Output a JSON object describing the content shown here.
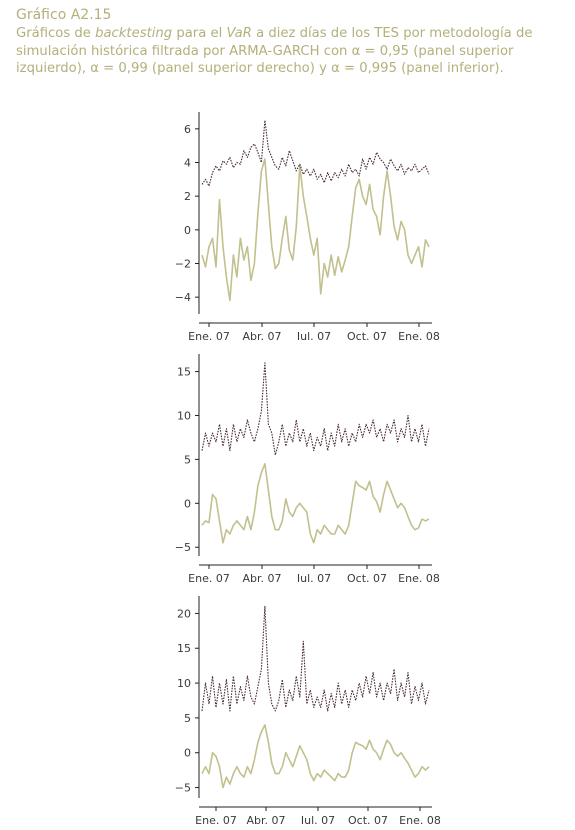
{
  "caption": {
    "label": "Gráfico A2.15",
    "parts": [
      {
        "text": "Gráficos de ",
        "italic": false
      },
      {
        "text": "backtesting",
        "italic": true
      },
      {
        "text": " para el ",
        "italic": false
      },
      {
        "text": "VaR",
        "italic": true
      },
      {
        "text": " a diez días de los TES por metodología de simulación histórica filtrada por ARMA-GARCH con α = 0,95 (panel superior izquierdo), α = 0,99 (panel superior derecho) y α = 0,995 (panel inferior).",
        "italic": false
      }
    ]
  },
  "colors": {
    "returns": "#c2c08e",
    "var": "#4a2c34",
    "axis": "#222222"
  },
  "chart_data": [
    {
      "type": "line",
      "title": "",
      "xlabel": "",
      "ylabel": "",
      "xticks": [
        "Ene. 07",
        "Abr. 07",
        "Jul. 07",
        "Oct. 07",
        "Ene. 08"
      ],
      "ylim": [
        -5,
        7
      ],
      "yticks": [
        -4,
        -2,
        0,
        2,
        4,
        6
      ],
      "series": [
        {
          "style": "dotted",
          "color": "#4a2c34",
          "x": [
            0,
            4,
            8,
            12,
            16,
            20,
            24,
            28,
            32,
            36,
            40,
            44,
            48,
            52,
            56,
            60,
            64,
            68,
            72,
            76,
            80,
            84,
            88,
            92,
            96,
            100,
            104,
            108,
            112,
            116,
            120,
            124,
            128,
            132,
            136,
            140,
            144,
            148,
            152,
            156,
            160,
            164,
            168,
            172,
            176,
            180,
            184,
            188,
            192,
            196,
            200,
            204,
            208,
            212,
            216,
            220,
            224,
            228,
            232,
            236,
            240,
            244,
            248,
            252,
            256,
            260
          ],
          "y": [
            2.7,
            3.0,
            2.6,
            3.4,
            3.8,
            3.5,
            4.1,
            3.9,
            4.3,
            3.7,
            4.0,
            3.9,
            4.7,
            4.3,
            4.9,
            5.1,
            4.6,
            4.0,
            6.5,
            4.8,
            4.3,
            3.8,
            3.6,
            4.3,
            3.8,
            4.7,
            4.1,
            3.5,
            3.9,
            3.3,
            3.6,
            3.2,
            3.6,
            3.0,
            3.3,
            2.8,
            3.4,
            2.9,
            3.4,
            3.1,
            3.6,
            3.2,
            3.9,
            3.4,
            3.6,
            3.2,
            4.2,
            3.6,
            4.3,
            3.9,
            4.6,
            4.2,
            4.0,
            3.6,
            4.2,
            3.8,
            3.5,
            3.9,
            3.3,
            3.7,
            3.5,
            3.9,
            3.4,
            3.6,
            3.8,
            3.3
          ]
        },
        {
          "style": "solid",
          "color": "#c2c08e",
          "x": [
            0,
            4,
            8,
            12,
            16,
            20,
            24,
            28,
            32,
            36,
            40,
            44,
            48,
            52,
            56,
            60,
            64,
            68,
            72,
            76,
            80,
            84,
            88,
            92,
            96,
            100,
            104,
            108,
            112,
            116,
            120,
            124,
            128,
            132,
            136,
            140,
            144,
            148,
            152,
            156,
            160,
            164,
            168,
            172,
            176,
            180,
            184,
            188,
            192,
            196,
            200,
            204,
            208,
            212,
            216,
            220,
            224,
            228,
            232,
            236,
            240,
            244,
            248,
            252,
            256,
            260
          ],
          "y": [
            -1.5,
            -2.2,
            -1.0,
            -0.5,
            -2.2,
            1.8,
            -1.0,
            -2.8,
            -4.2,
            -1.5,
            -2.8,
            -0.5,
            -1.8,
            -1.0,
            -3.0,
            -2.0,
            1.0,
            3.5,
            4.2,
            1.5,
            -1.0,
            -2.3,
            -2.0,
            -0.5,
            0.8,
            -1.2,
            -1.8,
            0.2,
            3.8,
            2.0,
            0.8,
            -0.5,
            -1.5,
            -0.5,
            -3.8,
            -2.0,
            -2.8,
            -1.5,
            -2.7,
            -1.6,
            -2.5,
            -1.8,
            -1.0,
            0.8,
            2.5,
            3.0,
            2.0,
            1.5,
            2.7,
            1.2,
            0.8,
            -0.3,
            2.0,
            3.5,
            2.0,
            0.2,
            -0.6,
            0.5,
            0.0,
            -1.5,
            -2.0,
            -1.5,
            -1.0,
            -2.2,
            -0.6,
            -1.0
          ]
        }
      ]
    },
    {
      "type": "line",
      "title": "",
      "xlabel": "",
      "ylabel": "",
      "xticks": [
        "Ene. 07",
        "Abr. 07",
        "Jul. 07",
        "Oct. 07",
        "Ene. 08"
      ],
      "ylim": [
        -6,
        17
      ],
      "yticks": [
        -5,
        0,
        5,
        10,
        15
      ],
      "series": [
        {
          "style": "dotted",
          "color": "#4a2c34",
          "x": [
            0,
            4,
            8,
            12,
            16,
            20,
            24,
            28,
            32,
            36,
            40,
            44,
            48,
            52,
            56,
            60,
            64,
            68,
            72,
            76,
            80,
            84,
            88,
            92,
            96,
            100,
            104,
            108,
            112,
            116,
            120,
            124,
            128,
            132,
            136,
            140,
            144,
            148,
            152,
            156,
            160,
            164,
            168,
            172,
            176,
            180,
            184,
            188,
            192,
            196,
            200,
            204,
            208,
            212,
            216,
            220,
            224,
            228,
            232,
            236,
            240,
            244,
            248,
            252,
            256,
            260
          ],
          "y": [
            6,
            8,
            6.5,
            8,
            7,
            9,
            6.5,
            8.5,
            6,
            9,
            7,
            8.5,
            7.5,
            9.5,
            8,
            7,
            8.5,
            10.5,
            16,
            9,
            8,
            5.5,
            7,
            9,
            6.5,
            8,
            7,
            9.5,
            7,
            8.5,
            6.5,
            8,
            6,
            7.5,
            6.5,
            8.5,
            6,
            8,
            6.5,
            9,
            7,
            8.5,
            6.5,
            8,
            7,
            9,
            7.5,
            9,
            8,
            9.5,
            7.5,
            8.5,
            7,
            9,
            8,
            9.5,
            7,
            8.5,
            7.5,
            10,
            7,
            8.5,
            7,
            9,
            6.5,
            8.5
          ]
        },
        {
          "style": "solid",
          "color": "#c2c08e",
          "x": [
            0,
            4,
            8,
            12,
            16,
            20,
            24,
            28,
            32,
            36,
            40,
            44,
            48,
            52,
            56,
            60,
            64,
            68,
            72,
            76,
            80,
            84,
            88,
            92,
            96,
            100,
            104,
            108,
            112,
            116,
            120,
            124,
            128,
            132,
            136,
            140,
            144,
            148,
            152,
            156,
            160,
            164,
            168,
            172,
            176,
            180,
            184,
            188,
            192,
            196,
            200,
            204,
            208,
            212,
            216,
            220,
            224,
            228,
            232,
            236,
            240,
            244,
            248,
            252,
            256,
            260
          ],
          "y": [
            -2.5,
            -2,
            -2.2,
            1,
            0.5,
            -2,
            -4.5,
            -3,
            -3.5,
            -2.5,
            -2,
            -2.5,
            -3,
            -1.5,
            -3,
            -1,
            2,
            3.5,
            4.5,
            1.5,
            -1.5,
            -3,
            -3,
            -2,
            0.5,
            -1,
            -1.5,
            -0.5,
            0,
            -0.5,
            -1,
            -3.5,
            -4.5,
            -3,
            -3.5,
            -2.5,
            -3,
            -3.5,
            -3.5,
            -2.5,
            -3,
            -3.5,
            -2.5,
            0,
            2.5,
            2,
            1.8,
            1.5,
            2.5,
            0.8,
            0.2,
            -1,
            1,
            2.5,
            1.5,
            0.5,
            -0.5,
            0,
            -0.5,
            -1.5,
            -2.5,
            -3,
            -2.8,
            -1.8,
            -2,
            -1.8
          ]
        }
      ]
    },
    {
      "type": "line",
      "title": "",
      "xlabel": "",
      "ylabel": "",
      "xticks": [
        "Ene. 07",
        "Abr. 07",
        "Jul. 07",
        "Oct. 07",
        "Ene. 08"
      ],
      "ylim": [
        -6.5,
        22.5
      ],
      "yticks": [
        -5,
        0,
        5,
        10,
        15,
        20
      ],
      "series": [
        {
          "style": "dotted",
          "color": "#4a2c34",
          "x": [
            0,
            4,
            8,
            12,
            16,
            20,
            24,
            28,
            32,
            36,
            40,
            44,
            48,
            52,
            56,
            60,
            64,
            68,
            72,
            76,
            80,
            84,
            88,
            92,
            96,
            100,
            104,
            108,
            112,
            116,
            120,
            124,
            128,
            132,
            136,
            140,
            144,
            148,
            152,
            156,
            160,
            164,
            168,
            172,
            176,
            180,
            184,
            188,
            192,
            196,
            200,
            204,
            208,
            212,
            216,
            220,
            224,
            228,
            232,
            236,
            240,
            244,
            248,
            252,
            256,
            260
          ],
          "y": [
            6,
            10,
            7,
            11,
            6.5,
            10,
            7,
            10.5,
            6,
            11,
            7,
            9.5,
            7.5,
            11,
            8,
            7,
            9.5,
            12,
            21,
            10,
            7,
            6,
            7.5,
            10.5,
            6.5,
            9,
            7.5,
            11,
            8,
            16,
            7,
            9,
            6.5,
            8,
            6.5,
            9,
            6,
            8.5,
            6.5,
            10,
            7,
            9,
            6.5,
            9,
            7.5,
            10,
            8,
            11,
            8.5,
            11.5,
            8,
            10,
            7.5,
            10,
            8.5,
            12,
            7.5,
            10,
            8,
            11.5,
            7,
            9.5,
            7.5,
            10,
            7,
            9
          ]
        },
        {
          "style": "solid",
          "color": "#c2c08e",
          "x": [
            0,
            4,
            8,
            12,
            16,
            20,
            24,
            28,
            32,
            36,
            40,
            44,
            48,
            52,
            56,
            60,
            64,
            68,
            72,
            76,
            80,
            84,
            88,
            92,
            96,
            100,
            104,
            108,
            112,
            116,
            120,
            124,
            128,
            132,
            136,
            140,
            144,
            148,
            152,
            156,
            160,
            164,
            168,
            172,
            176,
            180,
            184,
            188,
            192,
            196,
            200,
            204,
            208,
            212,
            216,
            220,
            224,
            228,
            232,
            236,
            240,
            244,
            248,
            252,
            256,
            260
          ],
          "y": [
            -3,
            -2,
            -3,
            0,
            -0.5,
            -2,
            -5,
            -3.5,
            -4.5,
            -3,
            -2,
            -3,
            -3.5,
            -2,
            -3,
            -1,
            1.5,
            3,
            4,
            1.5,
            -1.5,
            -3,
            -3,
            -2,
            0,
            -1,
            -2,
            -0.5,
            1,
            0,
            -1,
            -3,
            -4,
            -3,
            -3.5,
            -2.5,
            -3,
            -3.5,
            -4,
            -3,
            -3.5,
            -3.5,
            -2.5,
            0,
            1.5,
            1.2,
            1,
            0.5,
            1.8,
            0.5,
            0,
            -1,
            0.5,
            1.8,
            1.2,
            0,
            -0.5,
            0,
            -0.8,
            -1.5,
            -2.5,
            -3.5,
            -3,
            -2,
            -2.5,
            -2
          ]
        }
      ]
    }
  ]
}
